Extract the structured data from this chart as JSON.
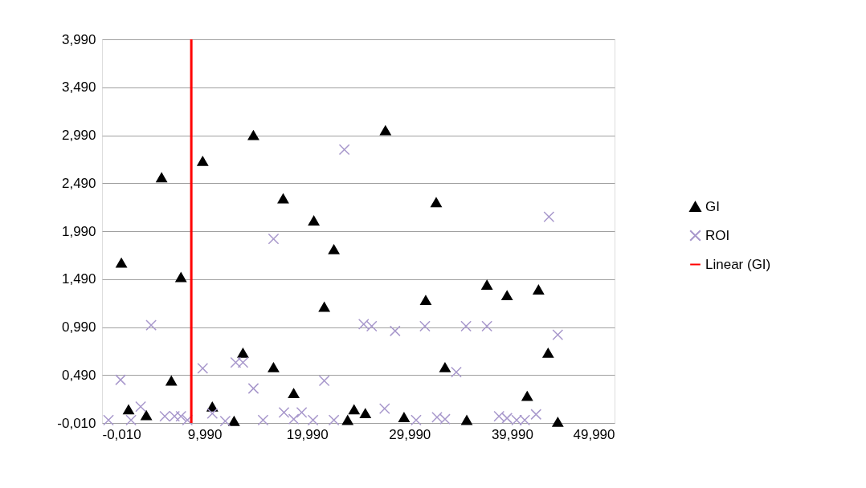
{
  "chart_data": {
    "type": "scatter",
    "xlim": [
      -0.01,
      49.99
    ],
    "ylim": [
      -0.01,
      3.99
    ],
    "xticks": [
      {
        "value": -0.01,
        "label": "-0,010"
      },
      {
        "value": 9.99,
        "label": "9,990"
      },
      {
        "value": 19.99,
        "label": "19,990"
      },
      {
        "value": 29.99,
        "label": "29,990"
      },
      {
        "value": 39.99,
        "label": "39,990"
      },
      {
        "value": 49.99,
        "label": "49,990"
      }
    ],
    "yticks": [
      {
        "value": -0.01,
        "label": "-0,010"
      },
      {
        "value": 0.49,
        "label": "0,490"
      },
      {
        "value": 0.99,
        "label": "0,990"
      },
      {
        "value": 1.49,
        "label": "1,490"
      },
      {
        "value": 1.99,
        "label": "1,990"
      },
      {
        "value": 2.49,
        "label": "2,490"
      },
      {
        "value": 2.99,
        "label": "2,990"
      },
      {
        "value": 3.49,
        "label": "3,490"
      },
      {
        "value": 3.99,
        "label": "3,990"
      }
    ],
    "grid": "y",
    "legend": "right",
    "series": [
      {
        "name": "GI",
        "marker": "triangle",
        "color": "#000000",
        "x": [
          1.88,
          2.58,
          4.31,
          5.8,
          6.75,
          7.69,
          9.81,
          10.75,
          12.87,
          13.74,
          14.76,
          16.72,
          17.66,
          18.69,
          20.65,
          21.67,
          22.61,
          23.95,
          24.58,
          25.68,
          27.64,
          29.45,
          31.57,
          32.59,
          33.45,
          35.57,
          37.54,
          39.5,
          41.47,
          42.57,
          43.51,
          44.45
        ],
        "values": [
          1.66,
          0.13,
          0.07,
          2.55,
          0.43,
          1.51,
          2.72,
          0.16,
          0.01,
          0.72,
          2.99,
          0.57,
          2.33,
          0.3,
          2.1,
          1.2,
          1.8,
          0.02,
          0.13,
          0.09,
          3.04,
          0.05,
          1.27,
          2.29,
          0.57,
          0.02,
          1.43,
          1.32,
          0.27,
          1.38,
          0.72,
          0.0
        ]
      },
      {
        "name": "ROI",
        "marker": "cross",
        "color": "#a898cc",
        "x": [
          0.62,
          1.8,
          2.82,
          3.76,
          4.78,
          6.12,
          7.06,
          7.69,
          8.32,
          9.81,
          10.75,
          12.01,
          13.03,
          13.74,
          14.76,
          15.7,
          16.72,
          17.74,
          18.69,
          19.47,
          20.57,
          21.67,
          22.61,
          23.63,
          25.52,
          26.3,
          28.58,
          27.56,
          30.63,
          31.49,
          32.67,
          33.45,
          34.55,
          35.5,
          37.54,
          38.72,
          39.5,
          40.44,
          41.23,
          42.33,
          43.59,
          44.45
        ],
        "values": [
          0.02,
          0.44,
          0.02,
          0.16,
          1.01,
          0.06,
          0.06,
          0.06,
          0.02,
          0.56,
          0.09,
          0.01,
          0.62,
          0.62,
          0.35,
          0.02,
          1.91,
          0.1,
          0.03,
          0.1,
          0.02,
          0.43,
          0.02,
          2.84,
          1.02,
          1.0,
          0.95,
          0.14,
          0.02,
          1.0,
          0.05,
          0.03,
          0.52,
          1.0,
          1.0,
          0.06,
          0.04,
          0.02,
          0.02,
          0.08,
          2.14,
          0.91
        ]
      },
      {
        "name": "Linear (GI)",
        "type": "line",
        "line_style": "solid",
        "color": "#ff0000",
        "x": [
          8.7,
          8.7
        ],
        "values": [
          -0.01,
          3.99
        ]
      }
    ]
  }
}
